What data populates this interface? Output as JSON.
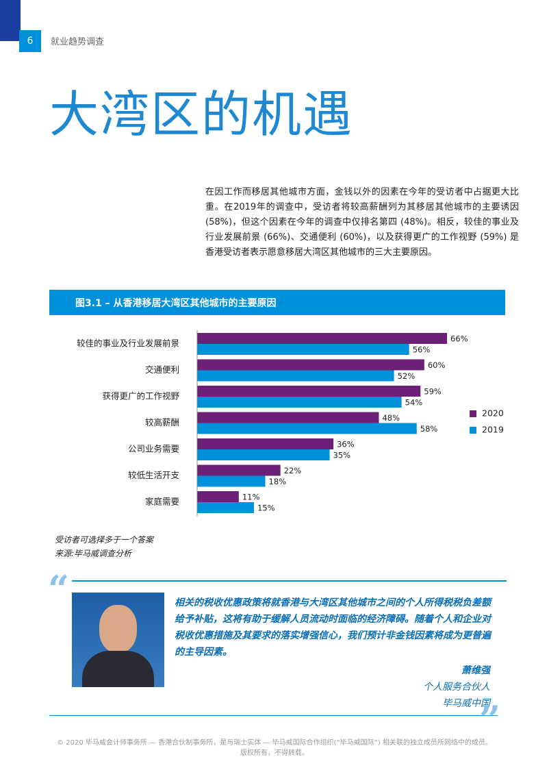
{
  "header": {
    "page_number": "6",
    "section": "就业趋势调查"
  },
  "title": "大湾区的机遇",
  "body": "在因工作而移居其他城市方面，金钱以外的因素在今年的受访者中占据更大比重。在2019年的调查中，受访者将较高薪酬列为其移居其他城市的主要诱因 (58%)，但这个因素在今年的调查中仅排名第四 (48%)。相反，较佳的事业及行业发展前景 (66%)、交通便利 (60%)，以及获得更广的工作视野 (59%) 是香港受访者表示愿意移居大湾区其他城市的三大主要原因。",
  "chart_data": {
    "type": "bar",
    "orientation": "horizontal",
    "title": "图3.1 – 从香港移居大湾区其他城市的主要原因",
    "categories": [
      "较佳的事业及行业发展前景",
      "交通便利",
      "获得更广的工作视野",
      "较高薪酬",
      "公司业务需要",
      "较低生活开支",
      "家庭需要"
    ],
    "series": [
      {
        "name": "2020",
        "color": "#6d2077",
        "values": [
          66,
          60,
          59,
          48,
          36,
          22,
          11
        ],
        "value_labels": [
          "66%",
          "60%",
          "59%",
          "48%",
          "36%",
          "22%",
          "11%"
        ]
      },
      {
        "name": "2019",
        "color": "#0091da",
        "values": [
          56,
          52,
          54,
          58,
          35,
          18,
          15
        ],
        "value_labels": [
          "56%",
          "52%",
          "54%",
          "58%",
          "35%",
          "18%",
          "15%"
        ]
      }
    ],
    "legend": "right"
  },
  "notes": [
    "受访者可选择多于一个答案",
    "来源:毕马威调查分析"
  ],
  "quote": {
    "text": "相关的税收优惠政策将就香港与大湾区其他城市之间的个人所得税税负差额给予补贴，这将有助于缓解人员流动时面临的经济障碍。随着个人和企业对税收优惠措施及其要求的落实增强信心，我们预计非金钱因素将成为更普遍的主导因素。",
    "name": "萧维强",
    "role": "个人服务合伙人",
    "org": "毕马威中国"
  },
  "footer": [
    "© 2020 毕马威会计师事务所 — 香港合伙制事务所，是与瑞士实体 — 毕马威国际合作组织(“毕马威国际”) 相关联的独立成员所网络中的成员。",
    "版权所有，不得转载。"
  ]
}
